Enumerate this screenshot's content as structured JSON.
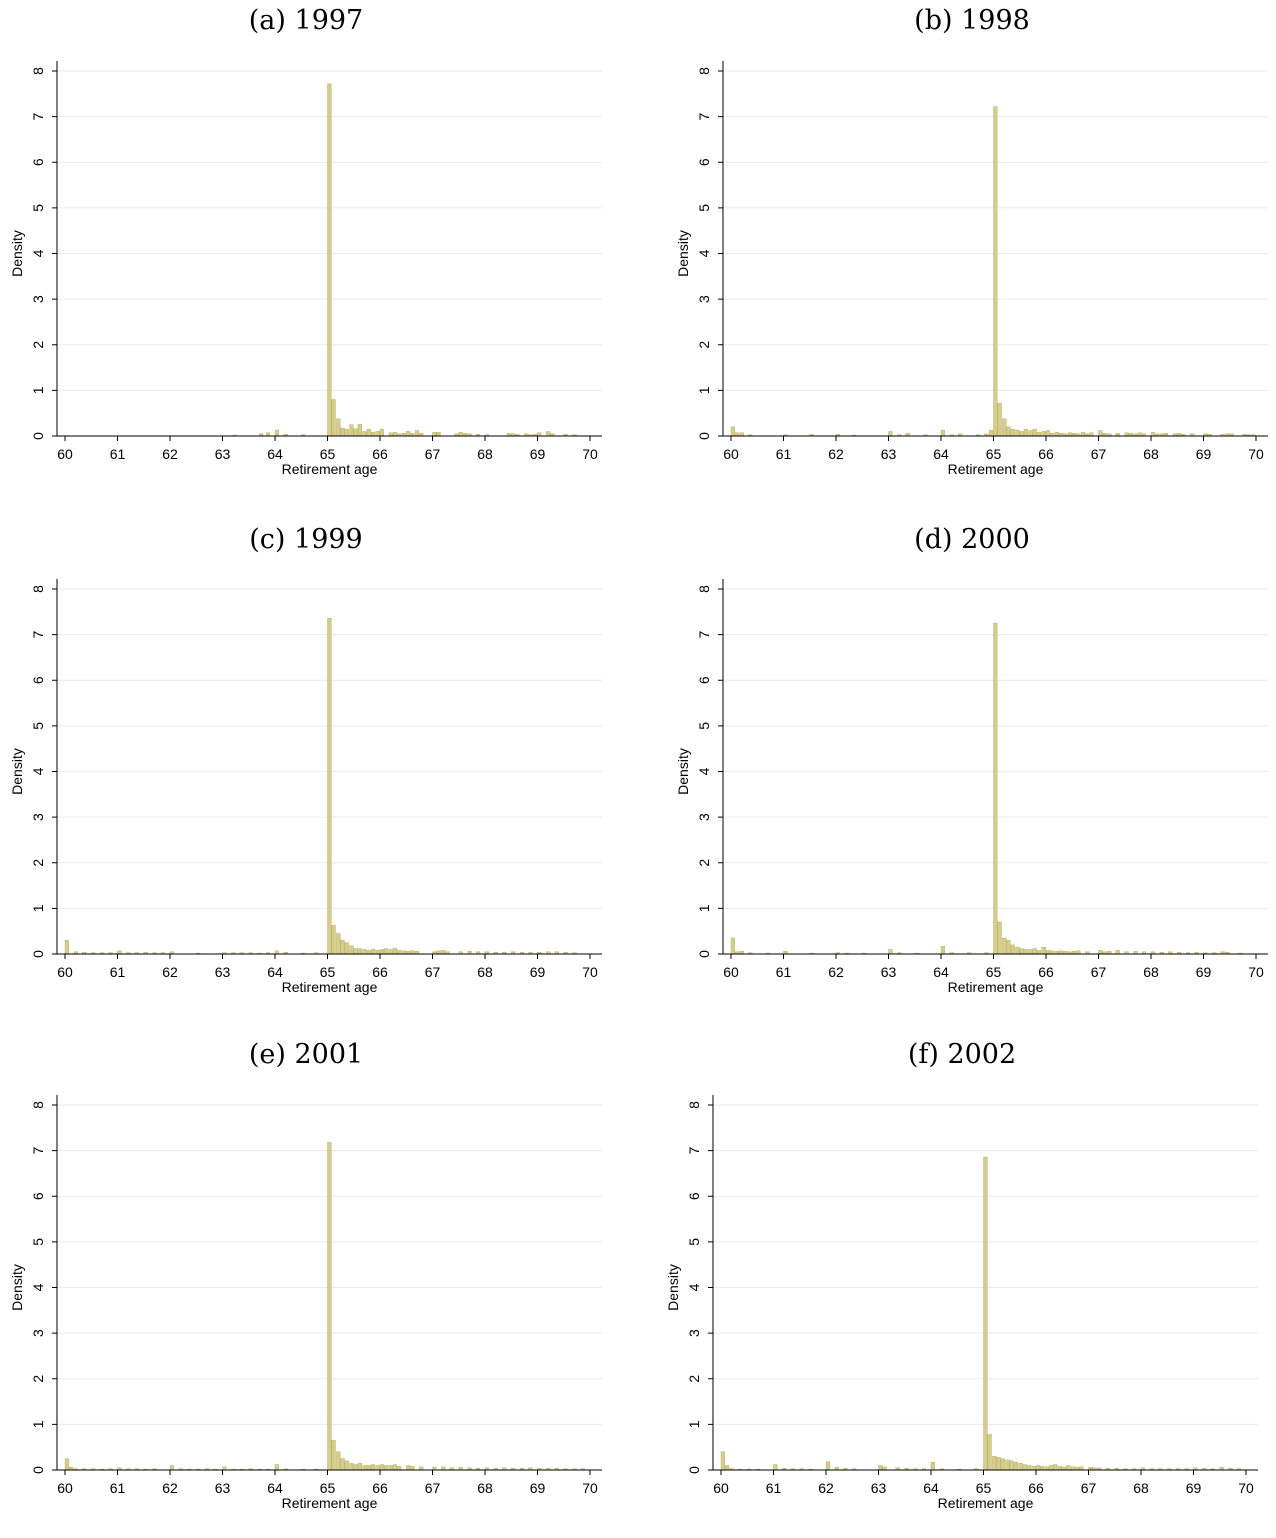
{
  "colors": {
    "bar": "#d6cd8d",
    "bar_edge": "#b3a95e",
    "grid": "#eaeaea",
    "axis": "#000000"
  },
  "chart_data": [
    {
      "type": "bar",
      "panel_title": "(a) 1997",
      "xlabel": "Retirement age",
      "ylabel": "Density",
      "xlim": [
        60,
        70
      ],
      "ylim": [
        0,
        8
      ],
      "xticks": [
        "60",
        "61",
        "62",
        "63",
        "64",
        "65",
        "66",
        "67",
        "68",
        "69",
        "70"
      ],
      "yticks": [
        "0",
        "1",
        "2",
        "3",
        "4",
        "5",
        "6",
        "7",
        "8"
      ],
      "grid": true,
      "bin_width": 0.0833,
      "x": [
        63.2,
        63.7,
        63.83,
        64.0,
        64.17,
        64.5,
        65.0,
        65.08,
        65.17,
        65.25,
        65.33,
        65.42,
        65.5,
        65.58,
        65.67,
        65.75,
        65.83,
        65.92,
        66.0,
        66.17,
        66.25,
        66.33,
        66.42,
        66.5,
        66.58,
        66.67,
        66.75,
        67.0,
        67.08,
        67.42,
        67.5,
        67.58,
        67.67,
        67.83,
        68.0,
        68.42,
        68.5,
        68.58,
        68.75,
        68.83,
        68.92,
        69.0,
        69.17,
        69.25,
        69.5,
        69.67
      ],
      "values": [
        0.02,
        0.05,
        0.07,
        0.13,
        0.04,
        0.03,
        7.72,
        0.8,
        0.38,
        0.17,
        0.15,
        0.25,
        0.16,
        0.26,
        0.1,
        0.15,
        0.08,
        0.1,
        0.15,
        0.07,
        0.08,
        0.05,
        0.06,
        0.1,
        0.06,
        0.12,
        0.06,
        0.08,
        0.08,
        0.05,
        0.08,
        0.06,
        0.05,
        0.04,
        0.03,
        0.06,
        0.05,
        0.04,
        0.05,
        0.03,
        0.04,
        0.07,
        0.1,
        0.05,
        0.04,
        0.03
      ]
    },
    {
      "type": "bar",
      "panel_title": "(b) 1998",
      "xlabel": "Retirement age",
      "ylabel": "Density",
      "xlim": [
        60,
        70
      ],
      "ylim": [
        0,
        8
      ],
      "xticks": [
        "60",
        "61",
        "62",
        "63",
        "64",
        "65",
        "66",
        "67",
        "68",
        "69",
        "70"
      ],
      "yticks": [
        "0",
        "1",
        "2",
        "3",
        "4",
        "5",
        "6",
        "7",
        "8"
      ],
      "grid": true,
      "bin_width": 0.0833,
      "x": [
        60.0,
        60.08,
        60.17,
        60.33,
        61.0,
        61.5,
        62.0,
        62.3,
        63.0,
        63.17,
        63.33,
        63.67,
        64.0,
        64.17,
        64.33,
        64.67,
        64.83,
        64.92,
        65.0,
        65.08,
        65.17,
        65.25,
        65.33,
        65.42,
        65.5,
        65.58,
        65.67,
        65.75,
        65.83,
        65.92,
        66.0,
        66.08,
        66.17,
        66.25,
        66.33,
        66.42,
        66.5,
        66.58,
        66.67,
        66.75,
        66.83,
        67.0,
        67.08,
        67.17,
        67.33,
        67.5,
        67.58,
        67.67,
        67.75,
        67.83,
        68.0,
        68.08,
        68.17,
        68.25,
        68.42,
        68.5,
        68.58,
        68.75,
        69.0,
        69.08,
        69.33,
        69.42,
        69.5,
        69.75,
        69.83,
        69.92
      ],
      "values": [
        0.2,
        0.07,
        0.07,
        0.03,
        0.03,
        0.04,
        0.04,
        0.02,
        0.1,
        0.03,
        0.06,
        0.03,
        0.13,
        0.03,
        0.05,
        0.03,
        0.05,
        0.13,
        7.22,
        0.72,
        0.38,
        0.2,
        0.15,
        0.13,
        0.1,
        0.15,
        0.12,
        0.15,
        0.08,
        0.1,
        0.12,
        0.06,
        0.08,
        0.06,
        0.05,
        0.07,
        0.06,
        0.05,
        0.08,
        0.05,
        0.07,
        0.12,
        0.06,
        0.05,
        0.06,
        0.07,
        0.06,
        0.05,
        0.07,
        0.05,
        0.08,
        0.05,
        0.05,
        0.06,
        0.05,
        0.06,
        0.04,
        0.05,
        0.05,
        0.04,
        0.04,
        0.05,
        0.05,
        0.04,
        0.03,
        0.03
      ]
    },
    {
      "type": "bar",
      "panel_title": "(c) 1999",
      "xlabel": "Retirement age",
      "ylabel": "Density",
      "xlim": [
        60,
        70
      ],
      "ylim": [
        0,
        8
      ],
      "xticks": [
        "60",
        "61",
        "62",
        "63",
        "64",
        "65",
        "66",
        "67",
        "68",
        "69",
        "70"
      ],
      "yticks": [
        "0",
        "1",
        "2",
        "3",
        "4",
        "5",
        "6",
        "7",
        "8"
      ],
      "grid": true,
      "bin_width": 0.0833,
      "x": [
        60.0,
        60.17,
        60.33,
        60.5,
        60.67,
        60.83,
        61.0,
        61.17,
        61.33,
        61.5,
        61.67,
        61.83,
        62.0,
        62.5,
        63.0,
        63.17,
        63.33,
        63.5,
        63.67,
        63.83,
        64.0,
        64.17,
        64.5,
        64.75,
        65.0,
        65.08,
        65.17,
        65.25,
        65.33,
        65.42,
        65.5,
        65.58,
        65.67,
        65.75,
        65.83,
        65.92,
        66.0,
        66.08,
        66.17,
        66.25,
        66.33,
        66.42,
        66.5,
        66.58,
        66.67,
        67.0,
        67.08,
        67.17,
        67.25,
        67.5,
        67.67,
        67.83,
        68.0,
        68.17,
        68.33,
        68.5,
        68.67,
        68.83,
        69.0,
        69.17,
        69.33,
        69.5,
        69.67
      ],
      "values": [
        0.3,
        0.05,
        0.04,
        0.03,
        0.03,
        0.03,
        0.07,
        0.03,
        0.03,
        0.04,
        0.03,
        0.03,
        0.05,
        0.02,
        0.03,
        0.03,
        0.03,
        0.03,
        0.02,
        0.03,
        0.07,
        0.04,
        0.02,
        0.03,
        7.36,
        0.63,
        0.45,
        0.3,
        0.25,
        0.18,
        0.12,
        0.12,
        0.1,
        0.08,
        0.1,
        0.08,
        0.1,
        0.12,
        0.1,
        0.13,
        0.08,
        0.07,
        0.06,
        0.07,
        0.06,
        0.05,
        0.07,
        0.08,
        0.05,
        0.05,
        0.06,
        0.05,
        0.05,
        0.04,
        0.04,
        0.05,
        0.04,
        0.04,
        0.04,
        0.05,
        0.05,
        0.04,
        0.03
      ]
    },
    {
      "type": "bar",
      "panel_title": "(d) 2000",
      "xlabel": "Retirement age",
      "ylabel": "Density",
      "xlim": [
        60,
        70
      ],
      "ylim": [
        0,
        8
      ],
      "xticks": [
        "60",
        "61",
        "62",
        "63",
        "64",
        "65",
        "66",
        "67",
        "68",
        "69",
        "70"
      ],
      "yticks": [
        "0",
        "1",
        "2",
        "3",
        "4",
        "5",
        "6",
        "7",
        "8"
      ],
      "grid": true,
      "bin_width": 0.0833,
      "x": [
        60.0,
        60.08,
        60.17,
        60.33,
        60.67,
        61.0,
        61.5,
        62.0,
        62.17,
        62.5,
        63.0,
        63.17,
        63.5,
        64.0,
        64.17,
        64.5,
        64.83,
        65.0,
        65.08,
        65.17,
        65.25,
        65.33,
        65.42,
        65.5,
        65.58,
        65.67,
        65.75,
        65.83,
        65.92,
        66.0,
        66.08,
        66.17,
        66.25,
        66.33,
        66.42,
        66.5,
        66.58,
        66.75,
        67.0,
        67.08,
        67.17,
        67.33,
        67.5,
        67.67,
        67.83,
        68.0,
        68.17,
        68.33,
        68.5,
        68.67,
        68.83,
        69.0,
        69.17,
        69.33,
        69.42,
        69.67
      ],
      "values": [
        0.35,
        0.05,
        0.06,
        0.03,
        0.02,
        0.06,
        0.02,
        0.03,
        0.02,
        0.02,
        0.1,
        0.03,
        0.02,
        0.17,
        0.03,
        0.03,
        0.03,
        7.25,
        0.7,
        0.35,
        0.3,
        0.2,
        0.15,
        0.12,
        0.1,
        0.1,
        0.12,
        0.08,
        0.15,
        0.08,
        0.07,
        0.06,
        0.07,
        0.06,
        0.05,
        0.06,
        0.07,
        0.05,
        0.08,
        0.05,
        0.06,
        0.08,
        0.05,
        0.06,
        0.05,
        0.05,
        0.04,
        0.05,
        0.04,
        0.03,
        0.04,
        0.03,
        0.03,
        0.05,
        0.04,
        0.02
      ]
    },
    {
      "type": "bar",
      "panel_title": "(e) 2001",
      "xlabel": "Retirement age",
      "ylabel": "Density",
      "xlim": [
        60,
        70
      ],
      "ylim": [
        0,
        8
      ],
      "xticks": [
        "60",
        "61",
        "62",
        "63",
        "64",
        "65",
        "66",
        "67",
        "68",
        "69",
        "70"
      ],
      "yticks": [
        "0",
        "1",
        "2",
        "3",
        "4",
        "5",
        "6",
        "7",
        "8"
      ],
      "grid": true,
      "bin_width": 0.0833,
      "x": [
        60.0,
        60.08,
        60.17,
        60.33,
        60.5,
        60.67,
        60.83,
        61.0,
        61.17,
        61.33,
        61.5,
        61.67,
        62.0,
        62.17,
        62.33,
        62.5,
        62.67,
        62.83,
        63.0,
        63.17,
        63.33,
        63.5,
        63.67,
        63.83,
        64.0,
        64.17,
        64.5,
        64.75,
        65.0,
        65.08,
        65.17,
        65.25,
        65.33,
        65.42,
        65.5,
        65.58,
        65.67,
        65.75,
        65.83,
        65.92,
        66.0,
        66.08,
        66.17,
        66.25,
        66.33,
        66.5,
        66.58,
        66.75,
        67.0,
        67.17,
        67.33,
        67.5,
        67.67,
        67.83,
        68.0,
        68.17,
        68.33,
        68.5,
        68.67,
        68.83,
        69.0,
        69.17,
        69.33,
        69.5,
        69.67,
        69.83
      ],
      "values": [
        0.25,
        0.06,
        0.03,
        0.03,
        0.03,
        0.02,
        0.03,
        0.05,
        0.03,
        0.03,
        0.02,
        0.03,
        0.1,
        0.03,
        0.02,
        0.02,
        0.03,
        0.02,
        0.07,
        0.02,
        0.02,
        0.03,
        0.02,
        0.02,
        0.12,
        0.03,
        0.02,
        0.02,
        7.18,
        0.65,
        0.4,
        0.25,
        0.2,
        0.15,
        0.12,
        0.15,
        0.1,
        0.1,
        0.12,
        0.1,
        0.12,
        0.1,
        0.1,
        0.12,
        0.08,
        0.1,
        0.08,
        0.07,
        0.06,
        0.07,
        0.05,
        0.06,
        0.05,
        0.04,
        0.05,
        0.04,
        0.05,
        0.04,
        0.04,
        0.05,
        0.04,
        0.04,
        0.04,
        0.03,
        0.03,
        0.03
      ]
    },
    {
      "type": "bar",
      "panel_title": "(f) 2002",
      "xlabel": "Retirement age",
      "ylabel": "Density",
      "xlim": [
        60,
        70
      ],
      "ylim": [
        0,
        8
      ],
      "xticks": [
        "60",
        "61",
        "62",
        "63",
        "64",
        "65",
        "66",
        "67",
        "68",
        "69",
        "70"
      ],
      "yticks": [
        "0",
        "1",
        "2",
        "3",
        "4",
        "5",
        "6",
        "7",
        "8"
      ],
      "grid": true,
      "bin_width": 0.0833,
      "x": [
        60.0,
        60.08,
        60.17,
        60.33,
        60.5,
        60.67,
        61.0,
        61.17,
        61.33,
        61.5,
        61.67,
        62.0,
        62.17,
        62.33,
        62.5,
        63.0,
        63.08,
        63.33,
        63.5,
        63.67,
        63.83,
        64.0,
        64.17,
        64.5,
        64.83,
        65.0,
        65.08,
        65.17,
        65.25,
        65.33,
        65.42,
        65.5,
        65.58,
        65.67,
        65.75,
        65.83,
        65.92,
        66.0,
        66.08,
        66.17,
        66.25,
        66.33,
        66.42,
        66.5,
        66.58,
        66.67,
        66.75,
        66.83,
        67.0,
        67.08,
        67.17,
        67.33,
        67.5,
        67.67,
        67.83,
        68.0,
        68.17,
        68.33,
        68.5,
        68.67,
        68.83,
        69.0,
        69.17,
        69.33,
        69.5,
        69.67,
        69.83
      ],
      "values": [
        0.4,
        0.1,
        0.03,
        0.02,
        0.02,
        0.02,
        0.12,
        0.04,
        0.03,
        0.03,
        0.02,
        0.18,
        0.06,
        0.04,
        0.03,
        0.1,
        0.07,
        0.05,
        0.04,
        0.03,
        0.03,
        0.17,
        0.03,
        0.02,
        0.03,
        6.86,
        0.78,
        0.3,
        0.28,
        0.25,
        0.22,
        0.2,
        0.17,
        0.15,
        0.12,
        0.1,
        0.08,
        0.1,
        0.08,
        0.07,
        0.1,
        0.12,
        0.08,
        0.06,
        0.1,
        0.07,
        0.06,
        0.07,
        0.06,
        0.05,
        0.05,
        0.04,
        0.04,
        0.03,
        0.03,
        0.05,
        0.03,
        0.03,
        0.03,
        0.03,
        0.03,
        0.05,
        0.04,
        0.03,
        0.06,
        0.04,
        0.03
      ]
    }
  ]
}
